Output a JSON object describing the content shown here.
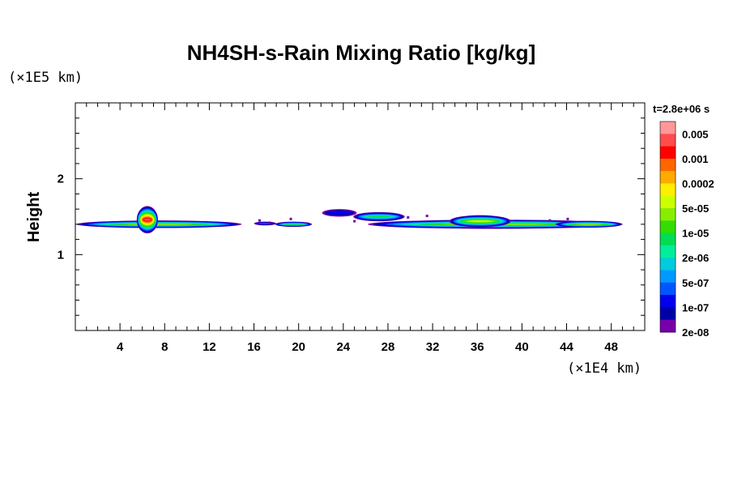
{
  "chart_data": {
    "type": "heatmap",
    "title": "NH4SH-s-Rain Mixing Ratio [kg/kg]",
    "ylabel": "Height",
    "x_unit": "(×1E4 km)",
    "y_unit": "(×1E5 km)",
    "time_label": "t=2.8e+06 s",
    "xlim": [
      0,
      51
    ],
    "ylim": [
      0,
      3
    ],
    "x_ticks": [
      4,
      8,
      12,
      16,
      20,
      24,
      28,
      32,
      36,
      40,
      44,
      48
    ],
    "x_minor_step": 1,
    "y_ticks": [
      1,
      2
    ],
    "y_minor_step": 0.2,
    "colorbar": {
      "colors": [
        "#ff9999",
        "#ff4d4d",
        "#ff0000",
        "#ff6600",
        "#ffaa00",
        "#ffee00",
        "#ccff00",
        "#88ee00",
        "#33dd00",
        "#00dd55",
        "#00ee99",
        "#00ccdd",
        "#0099ff",
        "#0055ff",
        "#0000ee",
        "#0000aa",
        "#7700aa"
      ],
      "labels": [
        "0.005",
        "0.001",
        "0.0002",
        "5e-05",
        "1e-05",
        "2e-06",
        "5e-07",
        "1e-07",
        "2e-08"
      ]
    },
    "cloud_blobs": [
      {
        "x0": 0.1,
        "x1": 14.9,
        "yc": 1.4,
        "h": 0.1,
        "peak": 7
      },
      {
        "x0": 5.5,
        "x1": 7.4,
        "yc": 1.46,
        "h": 0.36,
        "peak": 1
      },
      {
        "x0": 16.0,
        "x1": 18.0,
        "yc": 1.41,
        "h": 0.05,
        "peak": 13
      },
      {
        "x0": 17.9,
        "x1": 21.2,
        "yc": 1.4,
        "h": 0.07,
        "peak": 9
      },
      {
        "x0": 22.1,
        "x1": 25.2,
        "yc": 1.55,
        "h": 0.1,
        "peak": 14
      },
      {
        "x0": 24.9,
        "x1": 29.5,
        "yc": 1.5,
        "h": 0.12,
        "peak": 9
      },
      {
        "x0": 26.2,
        "x1": 49.0,
        "yc": 1.4,
        "h": 0.12,
        "peak": 7
      },
      {
        "x0": 33.5,
        "x1": 39.0,
        "yc": 1.44,
        "h": 0.16,
        "peak": 6
      },
      {
        "x0": 43.0,
        "x1": 49.0,
        "yc": 1.4,
        "h": 0.09,
        "peak": 7
      }
    ],
    "speckles": [
      {
        "x": 16.5,
        "y": 1.45
      },
      {
        "x": 17.4,
        "y": 1.42
      },
      {
        "x": 19.3,
        "y": 1.47
      },
      {
        "x": 25.0,
        "y": 1.44
      },
      {
        "x": 29.8,
        "y": 1.49
      },
      {
        "x": 31.5,
        "y": 1.51
      },
      {
        "x": 42.5,
        "y": 1.45
      },
      {
        "x": 44.1,
        "y": 1.47
      }
    ]
  }
}
